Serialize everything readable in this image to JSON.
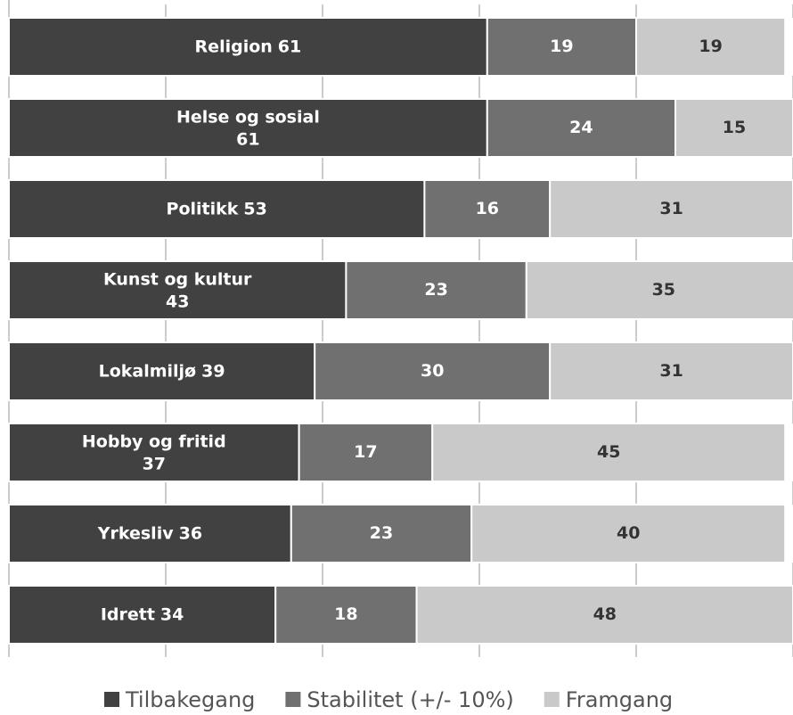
{
  "chart_data": {
    "type": "stacked-bar-horizontal",
    "categories": [
      "Religion",
      "Helse og sosial",
      "Politikk",
      "Kunst og kultur",
      "Lokalmiljø",
      "Hobby og fritid",
      "Yrkesliv",
      "Idrett"
    ],
    "series": [
      {
        "name": "Tilbakegang",
        "color": "#414141",
        "values": [
          61,
          61,
          53,
          43,
          39,
          37,
          36,
          34
        ]
      },
      {
        "name": "Stabilitet (+/- 10%)",
        "color": "#707070",
        "values": [
          19,
          24,
          16,
          23,
          30,
          17,
          23,
          18
        ]
      },
      {
        "name": "Framgang",
        "color": "#c9c9c9",
        "values": [
          19,
          15,
          31,
          35,
          31,
          45,
          40,
          48
        ]
      }
    ],
    "xlim": [
      0,
      100
    ],
    "xticks": [
      0,
      20,
      40,
      60,
      80,
      100
    ]
  }
}
